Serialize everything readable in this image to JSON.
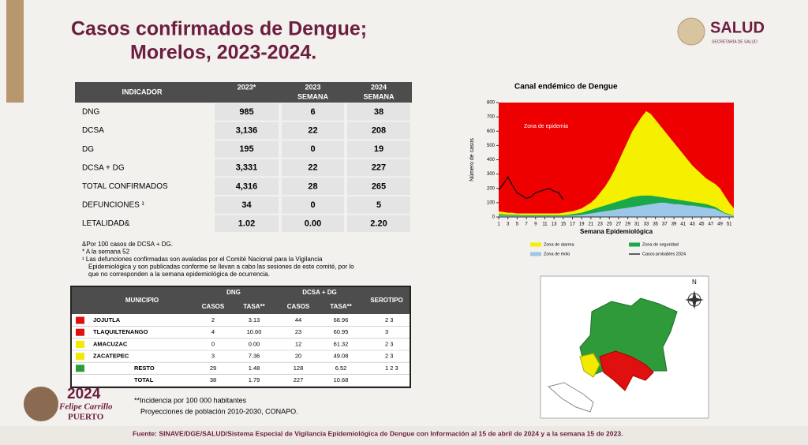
{
  "header": {
    "title_line1": "Casos confirmados de Dengue;",
    "title_line2": "Morelos, 2023-2024.",
    "logo_main": "SALUD",
    "logo_sub": "SECRETARÍA DE SALUD"
  },
  "table1": {
    "header": [
      "INDICADOR",
      "2023*",
      [
        "2023",
        "SEMANA"
      ],
      [
        "2024",
        "SEMANA"
      ]
    ],
    "rows": [
      [
        "DNG",
        "985",
        "6",
        "38"
      ],
      [
        "DCSA",
        "3,136",
        "22",
        "208"
      ],
      [
        "DG",
        "195",
        "0",
        "19"
      ],
      [
        "DCSA + DG",
        "3,331",
        "22",
        "227"
      ],
      [
        "TOTAL CONFIRMADOS",
        "4,316",
        "28",
        "265"
      ],
      [
        "DEFUNCIONES ¹",
        "34",
        "0",
        "5"
      ],
      [
        "LETALIDAD&",
        "1.02",
        "0.00",
        "2.20"
      ]
    ]
  },
  "notes": [
    "&Por 100 casos de DCSA + DG.",
    "* A la semana 52",
    "¹ Las defunciones confirmadas son avaladas por el Comité Nacional para la Vigilancia",
    "Epidemiológica y son publicadas conforme se llevan a cabo las sesiones de este comité, por lo",
    "que no corresponden a la semana epidemiológica de ocurrencia."
  ],
  "table2": {
    "header": {
      "municipio": "MUNICIPIO",
      "dng": "DNG",
      "dcsa": "DCSA + DG",
      "serotipo": "SEROTIPO",
      "casos": "CASOS",
      "tasa": "TASA**"
    },
    "rows": [
      {
        "color": "#e01010",
        "cells": [
          "JOJUTLA",
          "2",
          "3.13",
          "44",
          "68.96",
          "2  3"
        ]
      },
      {
        "color": "#e01010",
        "cells": [
          "TLAQUILTENANGO",
          "4",
          "10.60",
          "23",
          "60.95",
          "3"
        ]
      },
      {
        "color": "#f2ea00",
        "cells": [
          "AMACUZAC",
          "0",
          "0.00",
          "12",
          "61.32",
          "2  3"
        ]
      },
      {
        "color": "#f2ea00",
        "cells": [
          "ZACATEPEC",
          "3",
          "7.36",
          "20",
          "49.08",
          "2  3"
        ]
      },
      {
        "color": "#2e9a3a",
        "cells": [
          "RESTO",
          "29",
          "1.48",
          "128",
          "6.52",
          "1  2  3"
        ]
      },
      {
        "cells": [
          "TOTAL",
          "38",
          "1.79",
          "227",
          "10.68"
        ]
      }
    ]
  },
  "bottom_notes": [
    "**Incidencia por 100 000 habitantes",
    "Proyecciones de población 2010-2030,  CONAPO."
  ],
  "footer": "Fuente: SINAVE/DGE/SALUD/Sistema Especial de Vigilancia Epidemiológica de Dengue con Información al 15 de abril de 2024 y a la semana 15 de 2023.",
  "logo2024": {
    "year": "2024",
    "name1": "Felipe Carrillo",
    "name2": "PUERTO"
  },
  "map": {
    "north": "N"
  },
  "chart": {
    "type": "area",
    "title": "Canal endémico de Dengue",
    "y_label": "Número de casos",
    "x_label": "Semana Epidemiológica",
    "annotation": "Zona de epidemia",
    "background_color": "#ee0000",
    "x": [
      1,
      2,
      3,
      4,
      5,
      6,
      7,
      8,
      9,
      10,
      11,
      12,
      13,
      14,
      15,
      16,
      17,
      18,
      19,
      20,
      21,
      22,
      23,
      24,
      25,
      26,
      27,
      28,
      29,
      30,
      31,
      32,
      33,
      34,
      35,
      36,
      37,
      38,
      39,
      40,
      41,
      42,
      43,
      44,
      45,
      46,
      47,
      48,
      49,
      50,
      51,
      52
    ],
    "xlim": [
      1,
      52
    ],
    "xticks": [
      1,
      3,
      5,
      7,
      9,
      11,
      13,
      15,
      17,
      19,
      21,
      23,
      25,
      27,
      29,
      31,
      33,
      35,
      37,
      39,
      41,
      43,
      45,
      47,
      49,
      51
    ],
    "ylim": [
      0,
      800
    ],
    "yticks": [
      0,
      100,
      200,
      300,
      400,
      500,
      600,
      700,
      800
    ],
    "series": [
      {
        "name": "Zona de alarma",
        "color": "#f4f000",
        "values": [
          40,
          35,
          30,
          30,
          25,
          25,
          25,
          25,
          25,
          25,
          25,
          25,
          25,
          25,
          30,
          35,
          40,
          50,
          60,
          80,
          100,
          130,
          170,
          210,
          260,
          320,
          390,
          460,
          530,
          600,
          650,
          700,
          740,
          720,
          680,
          640,
          600,
          560,
          520,
          480,
          440,
          400,
          360,
          330,
          300,
          270,
          250,
          230,
          200,
          150,
          100,
          60
        ]
      },
      {
        "name": "Zona de seguridad",
        "color": "#1aa84a",
        "values": [
          20,
          18,
          15,
          15,
          15,
          12,
          12,
          12,
          12,
          12,
          12,
          12,
          12,
          12,
          12,
          15,
          20,
          25,
          30,
          40,
          50,
          60,
          70,
          80,
          90,
          100,
          110,
          120,
          130,
          140,
          145,
          150,
          150,
          150,
          145,
          140,
          135,
          130,
          125,
          120,
          115,
          110,
          105,
          100,
          95,
          90,
          80,
          70,
          50,
          30,
          20,
          10
        ]
      },
      {
        "name": "Zona de éxito",
        "color": "#9ec6e8",
        "values": [
          10,
          10,
          8,
          8,
          8,
          6,
          6,
          6,
          6,
          6,
          6,
          6,
          6,
          6,
          6,
          8,
          10,
          12,
          15,
          20,
          25,
          30,
          35,
          40,
          45,
          50,
          55,
          60,
          65,
          70,
          75,
          80,
          85,
          90,
          95,
          100,
          100,
          95,
          90,
          90,
          85,
          80,
          80,
          75,
          70,
          65,
          60,
          55,
          40,
          25,
          15,
          8
        ]
      },
      {
        "name": "Casos probables 2024",
        "color": "#111111",
        "kind": "line",
        "values": [
          190,
          230,
          280,
          220,
          170,
          150,
          130,
          140,
          170,
          180,
          190,
          200,
          180,
          170,
          120,
          null,
          null,
          null,
          null,
          null,
          null,
          null,
          null,
          null,
          null,
          null,
          null,
          null,
          null,
          null,
          null,
          null,
          null,
          null,
          null,
          null,
          null,
          null,
          null,
          null,
          null,
          null,
          null,
          null,
          null,
          null,
          null,
          null,
          null,
          null,
          null,
          null
        ]
      }
    ]
  }
}
